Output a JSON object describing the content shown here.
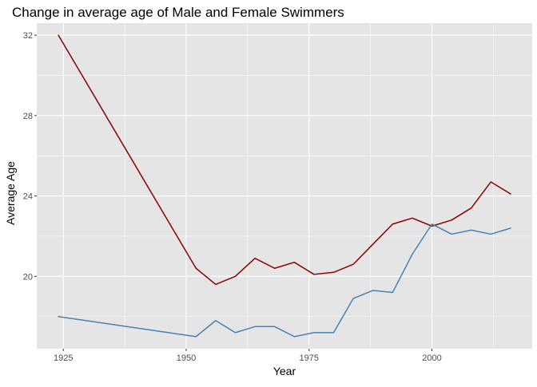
{
  "chart_data": {
    "type": "line",
    "title": "Change in average age of Male and Female Swimmers",
    "xlabel": "Year",
    "ylabel": "Average Age",
    "xlim": [
      1919.6,
      2020.4
    ],
    "ylim": [
      16.4,
      32.6
    ],
    "x_ticks": [
      1925,
      1950,
      1975,
      2000
    ],
    "y_ticks": [
      20,
      24,
      28,
      32
    ],
    "x_minor": [
      1937.5,
      1962.5,
      1987.5,
      2012.5
    ],
    "y_minor": [
      18,
      22,
      26,
      30
    ],
    "grid": true,
    "legend": "none",
    "panel_background": "#e5e5e5",
    "series": [
      {
        "color": "#8b0000",
        "x": [
          1924,
          1952,
          1956,
          1960,
          1964,
          1968,
          1972,
          1976,
          1980,
          1984,
          1988,
          1992,
          1996,
          2000,
          2004,
          2008,
          2012,
          2016
        ],
        "y": [
          32.0,
          20.4,
          19.6,
          20.0,
          20.9,
          20.4,
          20.7,
          20.1,
          20.2,
          20.6,
          21.6,
          22.6,
          22.9,
          22.5,
          22.8,
          23.4,
          24.7,
          24.1
        ]
      },
      {
        "color": "#4682b4",
        "x": [
          1924,
          1952,
          1956,
          1960,
          1964,
          1968,
          1972,
          1976,
          1980,
          1984,
          1988,
          1992,
          1996,
          2000,
          2004,
          2008,
          2012,
          2016
        ],
        "y": [
          18.0,
          17.0,
          17.8,
          17.2,
          17.5,
          17.5,
          17.0,
          17.2,
          17.2,
          18.9,
          19.3,
          19.2,
          21.1,
          22.6,
          22.1,
          22.3,
          22.1,
          22.4
        ]
      }
    ]
  }
}
